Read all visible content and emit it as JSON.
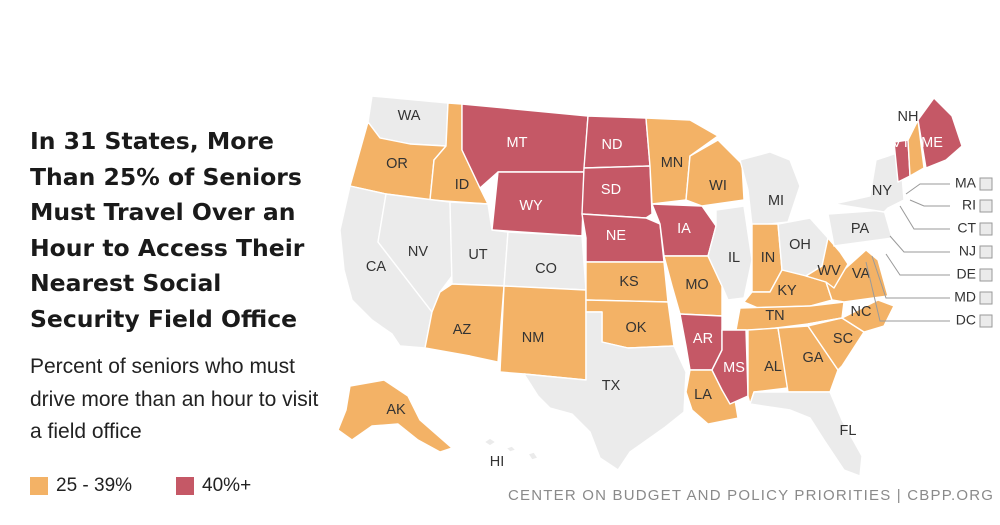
{
  "title": "In 31 States, More Than 25% of Seniors Must Travel Over an Hour to Access Their Nearest Social Security Field Office",
  "subtitle": "Percent of seniors who must drive more than an hour to visit a field office",
  "source": "CENTER ON BUDGET AND POLICY PRIORITIES | CBPP.ORG",
  "colors": {
    "none": "#ebebeb",
    "mid": "#f3b266",
    "high": "#c55866"
  },
  "legend": [
    {
      "label": "25 - 39%",
      "category": "mid"
    },
    {
      "label": "40%+",
      "category": "high"
    }
  ],
  "states": [
    {
      "abbr": "WA",
      "category": "none"
    },
    {
      "abbr": "OR",
      "category": "mid"
    },
    {
      "abbr": "CA",
      "category": "none"
    },
    {
      "abbr": "ID",
      "category": "mid"
    },
    {
      "abbr": "NV",
      "category": "none"
    },
    {
      "abbr": "MT",
      "category": "high"
    },
    {
      "abbr": "WY",
      "category": "high"
    },
    {
      "abbr": "UT",
      "category": "none"
    },
    {
      "abbr": "AZ",
      "category": "mid"
    },
    {
      "abbr": "CO",
      "category": "none"
    },
    {
      "abbr": "NM",
      "category": "mid"
    },
    {
      "abbr": "ND",
      "category": "high"
    },
    {
      "abbr": "SD",
      "category": "high"
    },
    {
      "abbr": "NE",
      "category": "high"
    },
    {
      "abbr": "KS",
      "category": "mid"
    },
    {
      "abbr": "OK",
      "category": "mid"
    },
    {
      "abbr": "TX",
      "category": "none"
    },
    {
      "abbr": "MN",
      "category": "mid"
    },
    {
      "abbr": "IA",
      "category": "high"
    },
    {
      "abbr": "MO",
      "category": "mid"
    },
    {
      "abbr": "AR",
      "category": "high"
    },
    {
      "abbr": "LA",
      "category": "mid"
    },
    {
      "abbr": "WI",
      "category": "mid"
    },
    {
      "abbr": "IL",
      "category": "none"
    },
    {
      "abbr": "MI",
      "category": "none"
    },
    {
      "abbr": "IN",
      "category": "mid"
    },
    {
      "abbr": "OH",
      "category": "none"
    },
    {
      "abbr": "KY",
      "category": "mid"
    },
    {
      "abbr": "TN",
      "category": "mid"
    },
    {
      "abbr": "MS",
      "category": "high"
    },
    {
      "abbr": "AL",
      "category": "mid"
    },
    {
      "abbr": "GA",
      "category": "mid"
    },
    {
      "abbr": "FL",
      "category": "none"
    },
    {
      "abbr": "SC",
      "category": "mid"
    },
    {
      "abbr": "NC",
      "category": "mid"
    },
    {
      "abbr": "VA",
      "category": "mid"
    },
    {
      "abbr": "WV",
      "category": "mid"
    },
    {
      "abbr": "PA",
      "category": "none"
    },
    {
      "abbr": "NY",
      "category": "none"
    },
    {
      "abbr": "VT",
      "category": "high"
    },
    {
      "abbr": "NH",
      "category": "mid"
    },
    {
      "abbr": "ME",
      "category": "high"
    },
    {
      "abbr": "AK",
      "category": "mid"
    },
    {
      "abbr": "HI",
      "category": "none"
    },
    {
      "abbr": "MA",
      "category": "none"
    },
    {
      "abbr": "RI",
      "category": "none"
    },
    {
      "abbr": "CT",
      "category": "none"
    },
    {
      "abbr": "NJ",
      "category": "none"
    },
    {
      "abbr": "DE",
      "category": "none"
    },
    {
      "abbr": "MD",
      "category": "none"
    },
    {
      "abbr": "DC",
      "category": "none"
    }
  ]
}
